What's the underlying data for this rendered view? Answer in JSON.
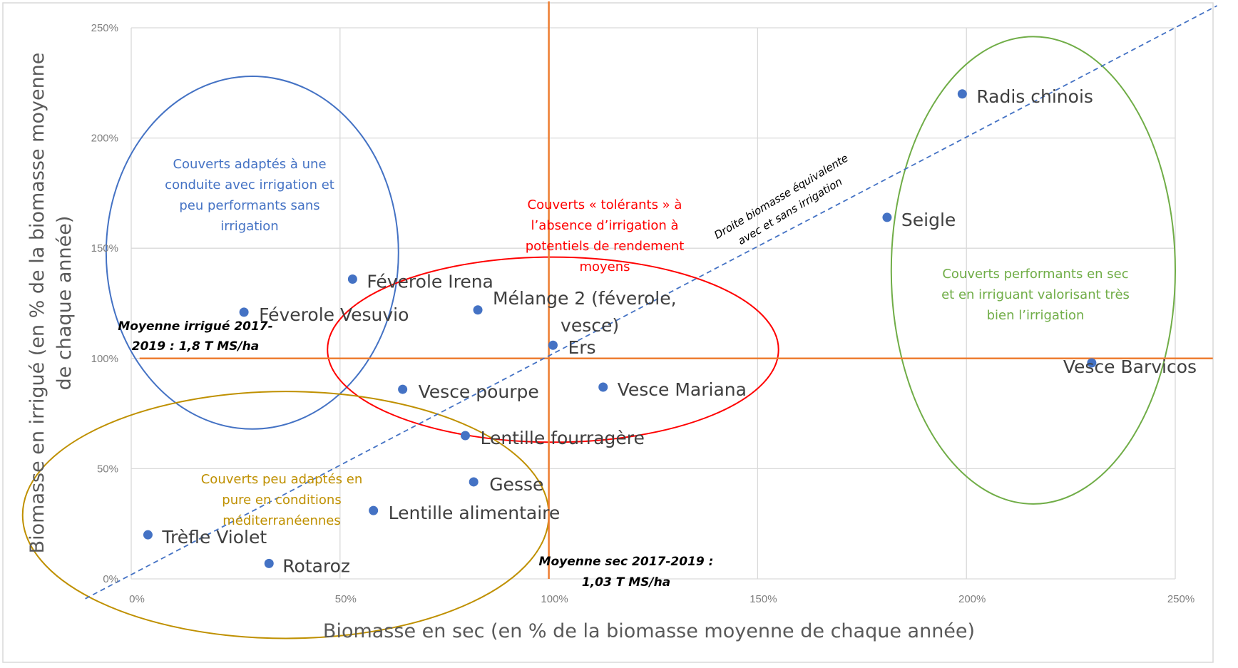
{
  "chart_data": {
    "type": "scatter",
    "xlabel": "Biomasse en sec (en % de la biomasse moyenne de chaque année)",
    "ylabel_lines": [
      "Biomasse en irrigué (en % de la biomasse moyenne",
      "de chaque année)"
    ],
    "xlim": [
      0,
      250
    ],
    "ylim": [
      0,
      250
    ],
    "x_ticks": [
      0,
      50,
      100,
      150,
      200,
      250
    ],
    "y_ticks": [
      0,
      50,
      100,
      150,
      200,
      250
    ],
    "x_tick_labels": [
      "0%",
      "50%",
      "100%",
      "150%",
      "200%",
      "250%"
    ],
    "y_tick_labels": [
      "0%",
      "50%",
      "100%",
      "150%",
      "200%",
      "250%"
    ],
    "grid": true,
    "point_color": "#4472c4",
    "points": [
      {
        "name": "Radis chinois",
        "x": 199,
        "y": 220,
        "label_lines": [
          "Radis chinois"
        ]
      },
      {
        "name": "Seigle",
        "x": 181,
        "y": 164,
        "label_lines": [
          "Seigle"
        ]
      },
      {
        "name": "Féverole Irena",
        "x": 53,
        "y": 136,
        "label_lines": [
          "Féverole Irena"
        ]
      },
      {
        "name": "Féverole Vesuvio",
        "x": 27,
        "y": 121,
        "label_lines": [
          "Féverole Vesuvio"
        ]
      },
      {
        "name": "Mélange 2 (féverole, vesce)",
        "x": 83,
        "y": 122,
        "label_lines": [
          "Mélange 2 (féverole,",
          "vesce)"
        ]
      },
      {
        "name": "Ers",
        "x": 101,
        "y": 106,
        "label_lines": [
          "Ers"
        ]
      },
      {
        "name": "Vesce Barvicos",
        "x": 230,
        "y": 98,
        "label_lines": [
          "Vesce Barvicos"
        ]
      },
      {
        "name": "Vesce pourpe",
        "x": 65,
        "y": 86,
        "label_lines": [
          "Vesce pourpe"
        ]
      },
      {
        "name": "Vesce Mariana",
        "x": 113,
        "y": 87,
        "label_lines": [
          "Vesce Mariana"
        ]
      },
      {
        "name": "Lentille fourragère",
        "x": 80,
        "y": 65,
        "label_lines": [
          "Lentille fourragère"
        ]
      },
      {
        "name": "Gesse",
        "x": 82,
        "y": 44,
        "label_lines": [
          "Gesse"
        ]
      },
      {
        "name": "Lentille alimentaire",
        "x": 58,
        "y": 31,
        "label_lines": [
          "Lentille alimentaire"
        ]
      },
      {
        "name": "Trèfle Violet",
        "x": 4,
        "y": 20,
        "label_lines": [
          "Trèfle Violet"
        ]
      },
      {
        "name": "Rotaroz",
        "x": 33,
        "y": 7,
        "label_lines": [
          "Rotaroz"
        ]
      }
    ],
    "reference_lines": {
      "color": "#ed7d31",
      "vertical_x": 100,
      "horizontal_y": 100
    },
    "diagonal": {
      "color": "#4472c4",
      "from": [
        -11,
        -9
      ],
      "to": [
        260,
        260
      ],
      "label_lines": [
        "Droite biomasse équivalente",
        "avec et sans irrigation"
      ]
    },
    "annotations": [
      {
        "id": "moyenne-irrigue",
        "lines": [
          "Moyenne irrigué  2017-",
          "2019 : 1,8 T MS/ha"
        ]
      },
      {
        "id": "moyenne-sec",
        "lines": [
          "Moyenne sec 2017-2019 :",
          "1,03 T MS/ha"
        ]
      }
    ],
    "groups": [
      {
        "id": "blue",
        "color": "#4472c4",
        "label_lines": [
          "Couverts adaptés à une",
          "conduite avec irrigation et",
          "peu performants sans",
          "irrigation"
        ],
        "ellipse": {
          "cx": 29,
          "cy": 148,
          "rx": 35,
          "ry": 80
        }
      },
      {
        "id": "red",
        "color": "#ff0000",
        "label_lines": [
          "Couverts « tolérants » à",
          "l’absence d’irrigation à",
          "potentiels de rendement",
          "moyens"
        ],
        "ellipse": {
          "cx": 101,
          "cy": 104,
          "rx": 54,
          "ry": 42
        }
      },
      {
        "id": "green",
        "color": "#70ad47",
        "label_lines": [
          "Couverts performants en sec",
          "et en irriguant valorisant très",
          "bien l’irrigation"
        ],
        "ellipse": {
          "cx": 216,
          "cy": 140,
          "rx": 34,
          "ry": 106
        }
      },
      {
        "id": "gold",
        "color": "#bf9000",
        "label_lines": [
          "Couverts peu adaptés en",
          "pure en conditions",
          "méditerranéennes"
        ],
        "ellipse": {
          "cx": 37,
          "cy": 29,
          "rx": 63,
          "ry": 56
        }
      }
    ]
  }
}
